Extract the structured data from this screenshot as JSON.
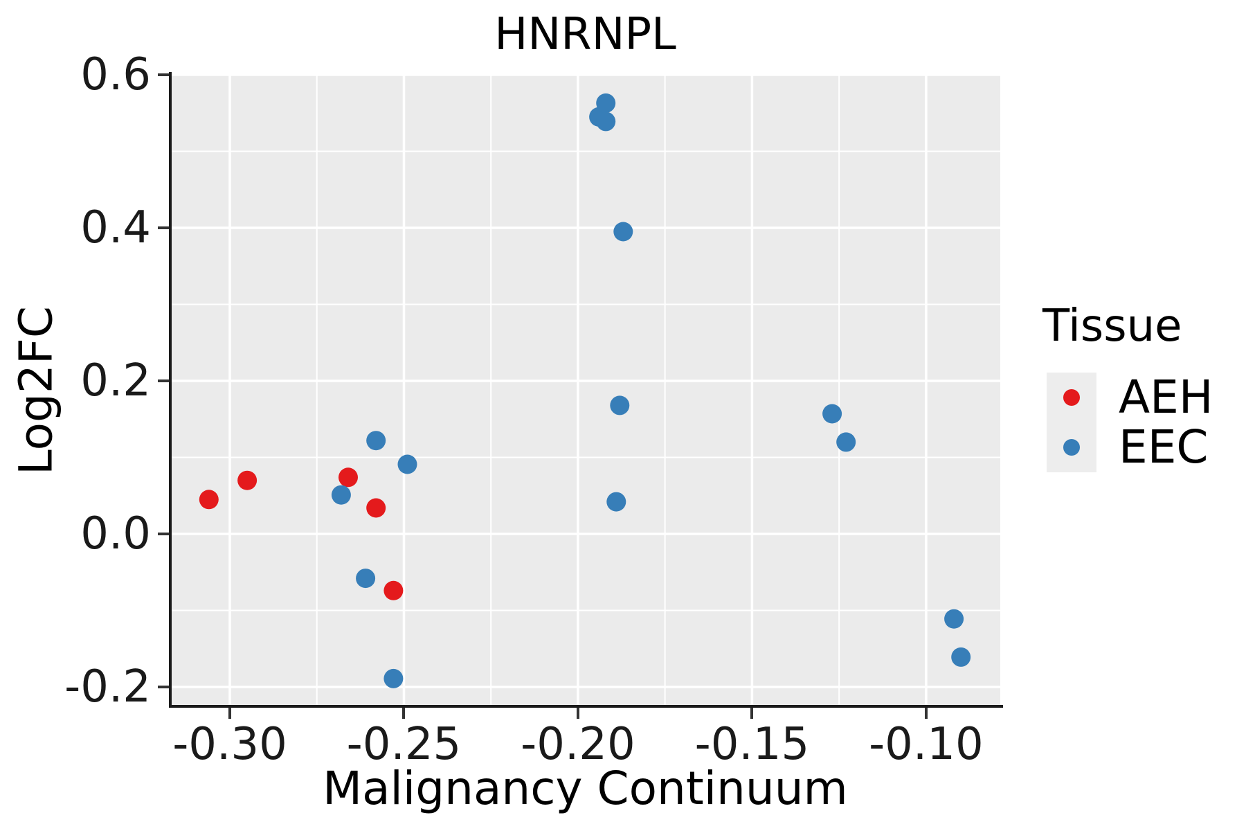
{
  "title": "HNRNPL",
  "legend": {
    "title": "Tissue",
    "items": [
      {
        "label": "AEH",
        "color": "#E41A1C"
      },
      {
        "label": "EEC",
        "color": "#377EB8"
      }
    ]
  },
  "chart_data": {
    "type": "scatter",
    "title": "HNRNPL",
    "xlabel": "Malignancy Continuum",
    "ylabel": "Log2FC",
    "xlim": [
      -0.3171,
      -0.0787
    ],
    "ylim": [
      -0.2253,
      0.6
    ],
    "x_ticks": [
      -0.3,
      -0.25,
      -0.2,
      -0.15,
      -0.1
    ],
    "x_tick_labels": [
      "-0.30",
      "-0.25",
      "-0.20",
      "-0.15",
      "-0.10"
    ],
    "y_ticks": [
      0.6,
      0.4,
      0.2,
      0.0,
      -0.2
    ],
    "y_tick_labels": [
      "0.6",
      "0.4",
      "0.2",
      "0.0",
      "-0.2"
    ],
    "x_minor_ticks": [
      -0.275,
      -0.225,
      -0.175,
      -0.125
    ],
    "y_minor_ticks": [
      0.5,
      0.3,
      0.1,
      -0.1
    ],
    "grid": true,
    "panel_background": "#EBEBEB",
    "gridline_color": "#FFFFFF",
    "legend_position": "right",
    "legend_title": "Tissue",
    "series": [
      {
        "name": "AEH",
        "color": "#E41A1C",
        "points": [
          [
            -0.306,
            0.045
          ],
          [
            -0.295,
            0.07
          ],
          [
            -0.266,
            0.074
          ],
          [
            -0.258,
            0.034
          ],
          [
            -0.253,
            -0.074
          ]
        ]
      },
      {
        "name": "EEC",
        "color": "#377EB8",
        "points": [
          [
            -0.268,
            0.051
          ],
          [
            -0.258,
            0.122
          ],
          [
            -0.249,
            0.091
          ],
          [
            -0.261,
            -0.058
          ],
          [
            -0.253,
            -0.189
          ],
          [
            -0.194,
            0.545
          ],
          [
            -0.192,
            0.563
          ],
          [
            -0.192,
            0.539
          ],
          [
            -0.187,
            0.395
          ],
          [
            -0.188,
            0.168
          ],
          [
            -0.189,
            0.042
          ],
          [
            -0.127,
            0.157
          ],
          [
            -0.123,
            0.12
          ],
          [
            -0.092,
            -0.111
          ],
          [
            -0.09,
            -0.161
          ]
        ]
      }
    ]
  }
}
